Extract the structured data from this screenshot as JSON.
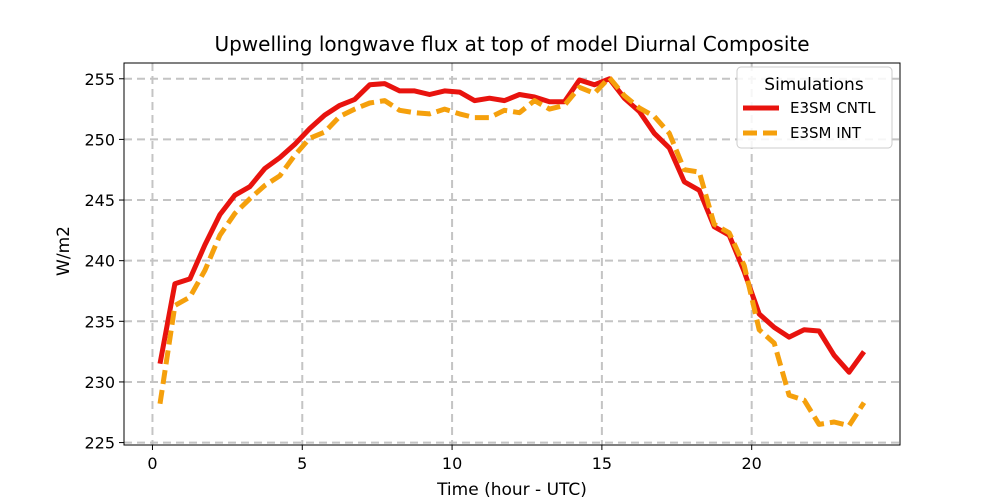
{
  "chart_data": {
    "type": "line",
    "title": "Upwelling longwave flux at top of model Diurnal Composite",
    "xlabel": "Time (hour - UTC)",
    "ylabel": "W/m2",
    "xlim": [
      -0.95,
      24.95
    ],
    "ylim": [
      224.8,
      256.3
    ],
    "xticks": [
      0,
      5,
      10,
      15,
      20
    ],
    "yticks": [
      225,
      230,
      235,
      240,
      245,
      250,
      255
    ],
    "grid": true,
    "legend": {
      "title": "Simulations",
      "position": "top-right"
    },
    "x": [
      0.25,
      0.75,
      1.25,
      1.75,
      2.25,
      2.75,
      3.25,
      3.75,
      4.25,
      4.75,
      5.25,
      5.75,
      6.25,
      6.75,
      7.25,
      7.75,
      8.25,
      8.75,
      9.25,
      9.75,
      10.25,
      10.75,
      11.25,
      11.75,
      12.25,
      12.75,
      13.25,
      13.75,
      14.25,
      14.75,
      15.25,
      15.75,
      16.25,
      16.75,
      17.25,
      17.75,
      18.25,
      18.75,
      19.25,
      19.75,
      20.25,
      20.75,
      21.25,
      21.75,
      22.25,
      22.75,
      23.25,
      23.75
    ],
    "series": [
      {
        "name": "E3SM CNTL",
        "color": "#e8130e",
        "style": "solid",
        "values": [
          231.5,
          238.1,
          238.5,
          241.3,
          243.8,
          245.4,
          246.1,
          247.6,
          248.5,
          249.6,
          250.9,
          252.0,
          252.8,
          253.3,
          254.5,
          254.6,
          254.0,
          254.0,
          253.7,
          254.0,
          253.9,
          253.2,
          253.4,
          253.2,
          253.7,
          253.5,
          253.1,
          253.1,
          254.9,
          254.5,
          255.0,
          253.4,
          252.3,
          250.5,
          249.3,
          246.5,
          245.8,
          242.8,
          242.1,
          239.1,
          235.6,
          234.5,
          233.7,
          234.3,
          234.2,
          232.2,
          230.8,
          232.5
        ]
      },
      {
        "name": "E3SM INT",
        "color": "#f5a00c",
        "style": "dashed",
        "values": [
          228.2,
          236.3,
          237.0,
          239.2,
          242.1,
          243.9,
          245.1,
          246.2,
          247.0,
          248.7,
          250.1,
          250.6,
          251.9,
          252.5,
          253.0,
          253.2,
          252.4,
          252.2,
          252.1,
          252.5,
          252.1,
          251.8,
          251.8,
          252.4,
          252.2,
          253.2,
          252.5,
          252.8,
          254.3,
          253.8,
          255.1,
          253.6,
          252.6,
          251.9,
          250.5,
          247.5,
          247.3,
          243.0,
          242.3,
          239.6,
          234.3,
          233.2,
          228.9,
          228.5,
          226.5,
          226.7,
          226.4,
          228.3
        ]
      }
    ]
  }
}
